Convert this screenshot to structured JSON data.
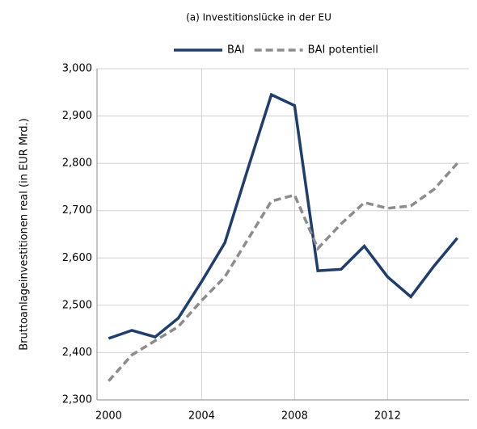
{
  "chart_data": {
    "type": "line",
    "title": "(a) Investitionslücke in der EU",
    "y_label": "Bruttoanlageinvestitionen real (in EUR Mrd.)",
    "categories": [
      "2000",
      null,
      null,
      null,
      "2004",
      null,
      null,
      null,
      "2008",
      null,
      null,
      null,
      "2012",
      null,
      null,
      null
    ],
    "series": [
      {
        "name": "BAI",
        "color": "#1f3e6e",
        "dash": false,
        "values": [
          2430,
          2447,
          2433,
          2473,
          2550,
          2632,
          2790,
          2945,
          2922,
          2573,
          2576,
          2625,
          2560,
          2518,
          2583,
          2642
        ]
      },
      {
        "name": "BAI potentiell",
        "color": "#8c8c8c",
        "dash": true,
        "values": [
          2340,
          2395,
          2425,
          2455,
          2510,
          2560,
          2640,
          2720,
          2733,
          2620,
          2672,
          2717,
          2705,
          2710,
          2745,
          2800
        ]
      }
    ],
    "ylim": [
      2300,
      3000
    ],
    "yticks": [
      {
        "value": 2300,
        "label": "2,300"
      },
      {
        "value": 2400,
        "label": "2,400"
      },
      {
        "value": 2500,
        "label": "2,500"
      },
      {
        "value": 2600,
        "label": "2,600"
      },
      {
        "value": 2700,
        "label": "2,700"
      },
      {
        "value": 2800,
        "label": "2,800"
      },
      {
        "value": 2900,
        "label": "2,900"
      },
      {
        "value": 3000,
        "label": "3,000"
      }
    ],
    "grid": true,
    "legend": "top"
  }
}
